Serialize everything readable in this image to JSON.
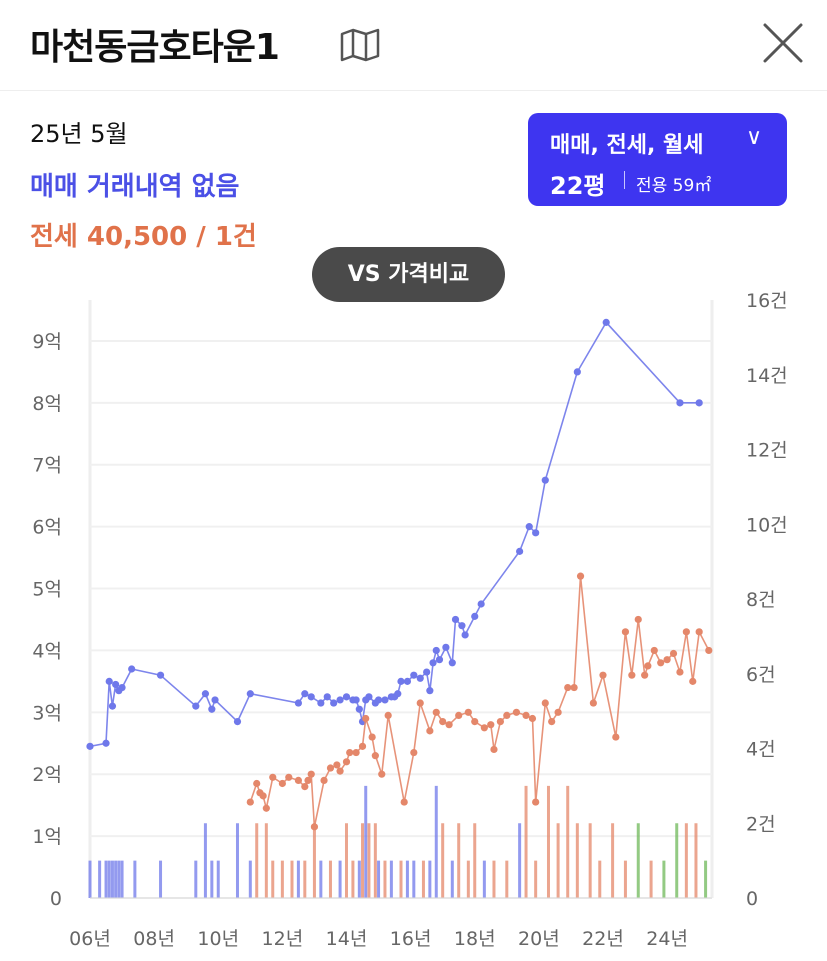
{
  "header": {
    "title": "마천동금호타운1",
    "map_icon": "map-icon",
    "close_icon": "close-icon"
  },
  "summary": {
    "date": "25년 5월",
    "sale_text": "매매 거래내역 없음",
    "lease_text": "전세 40,500 / 1건"
  },
  "type_selector": {
    "types_label": "매매, 전세, 월세",
    "chevron": "∨",
    "pyeong": "22평",
    "area": "전용 59㎡"
  },
  "vs_button": {
    "label": "VS 가격비교"
  },
  "colors": {
    "sale": "#6f78ea",
    "lease": "#e4876a",
    "accent": "#3e35f0"
  },
  "chart_data": {
    "type": "line",
    "x_tick_labels": [
      "06년",
      "08년",
      "10년",
      "12년",
      "14년",
      "16년",
      "18년",
      "20년",
      "22년",
      "24년"
    ],
    "y_left_ticks": [
      "0",
      "1억",
      "2억",
      "3억",
      "4억",
      "5억",
      "6억",
      "7억",
      "8억",
      "9억"
    ],
    "y_right_ticks": [
      "0",
      "2건",
      "4건",
      "6건",
      "8건",
      "10건",
      "12건",
      "14건",
      "16건"
    ],
    "xlim": [
      2006.0,
      2025.4
    ],
    "ylim_left": [
      0,
      9.5
    ],
    "ylim_right": [
      0,
      16
    ],
    "series": [
      {
        "name": "매매",
        "color": "#6f78ea",
        "x": [
          2006.0,
          2006.5,
          2006.6,
          2006.7,
          2006.8,
          2006.9,
          2007.0,
          2007.3,
          2008.2,
          2009.3,
          2009.6,
          2009.8,
          2009.9,
          2010.6,
          2011.0,
          2012.5,
          2012.7,
          2012.9,
          2013.2,
          2013.4,
          2013.6,
          2013.8,
          2014.0,
          2014.2,
          2014.3,
          2014.4,
          2014.5,
          2014.6,
          2014.7,
          2014.9,
          2015.0,
          2015.2,
          2015.4,
          2015.5,
          2015.6,
          2015.7,
          2015.9,
          2016.1,
          2016.3,
          2016.5,
          2016.6,
          2016.7,
          2016.8,
          2016.9,
          2017.1,
          2017.3,
          2017.4,
          2017.6,
          2017.7,
          2018.0,
          2018.2,
          2019.4,
          2019.7,
          2019.9,
          2020.2,
          2021.2,
          2022.1,
          2024.4,
          2025.0
        ],
        "y": [
          2.45,
          2.5,
          3.5,
          3.1,
          3.45,
          3.35,
          3.4,
          3.7,
          3.6,
          3.1,
          3.3,
          3.05,
          3.2,
          2.85,
          3.3,
          3.15,
          3.3,
          3.25,
          3.15,
          3.25,
          3.15,
          3.2,
          3.25,
          3.2,
          3.2,
          3.05,
          2.85,
          3.2,
          3.25,
          3.15,
          3.2,
          3.2,
          3.25,
          3.25,
          3.3,
          3.5,
          3.5,
          3.6,
          3.55,
          3.65,
          3.35,
          3.8,
          4.0,
          3.85,
          4.05,
          3.8,
          4.5,
          4.4,
          4.25,
          4.55,
          4.75,
          5.6,
          6.0,
          5.9,
          6.75,
          8.5,
          9.3,
          8.0,
          8.0
        ]
      },
      {
        "name": "전세",
        "color": "#e4876a",
        "x": [
          2011.0,
          2011.2,
          2011.3,
          2011.4,
          2011.5,
          2011.7,
          2012.0,
          2012.2,
          2012.5,
          2012.7,
          2012.8,
          2012.9,
          2013.0,
          2013.3,
          2013.5,
          2013.7,
          2013.8,
          2014.0,
          2014.1,
          2014.3,
          2014.5,
          2014.6,
          2014.8,
          2014.9,
          2015.1,
          2015.3,
          2015.8,
          2016.1,
          2016.3,
          2016.6,
          2016.8,
          2017.0,
          2017.2,
          2017.5,
          2017.8,
          2018.0,
          2018.3,
          2018.5,
          2018.6,
          2018.8,
          2019.0,
          2019.3,
          2019.6,
          2019.8,
          2019.9,
          2020.2,
          2020.4,
          2020.6,
          2020.9,
          2021.1,
          2021.3,
          2021.7,
          2022.0,
          2022.4,
          2022.7,
          2022.9,
          2023.1,
          2023.3,
          2023.4,
          2023.6,
          2023.8,
          2024.0,
          2024.2,
          2024.4,
          2024.6,
          2024.8,
          2025.0,
          2025.3
        ],
        "y": [
          1.55,
          1.85,
          1.7,
          1.65,
          1.45,
          1.95,
          1.85,
          1.95,
          1.9,
          1.8,
          1.9,
          2.0,
          1.15,
          1.9,
          2.1,
          2.15,
          2.05,
          2.2,
          2.35,
          2.35,
          2.45,
          2.9,
          2.6,
          2.3,
          2.0,
          2.95,
          1.55,
          2.35,
          3.15,
          2.7,
          3.0,
          2.85,
          2.8,
          2.95,
          3.0,
          2.85,
          2.75,
          2.8,
          2.4,
          2.85,
          2.95,
          3.0,
          2.95,
          2.9,
          1.55,
          3.15,
          2.85,
          3.0,
          3.4,
          3.4,
          5.2,
          3.15,
          3.6,
          2.6,
          4.3,
          3.6,
          4.5,
          3.6,
          3.75,
          4.0,
          3.8,
          3.85,
          3.95,
          3.65,
          4.3,
          3.5,
          4.3,
          4.0
        ]
      }
    ],
    "volume_bars": [
      {
        "x": 2006.0,
        "count": 1,
        "color": "#6f78ea"
      },
      {
        "x": 2006.3,
        "count": 1,
        "color": "#6f78ea"
      },
      {
        "x": 2006.5,
        "count": 1,
        "color": "#6f78ea"
      },
      {
        "x": 2006.6,
        "count": 1,
        "color": "#6f78ea"
      },
      {
        "x": 2006.7,
        "count": 1,
        "color": "#6f78ea"
      },
      {
        "x": 2006.8,
        "count": 1,
        "color": "#6f78ea"
      },
      {
        "x": 2006.9,
        "count": 1,
        "color": "#6f78ea"
      },
      {
        "x": 2007.0,
        "count": 1,
        "color": "#6f78ea"
      },
      {
        "x": 2007.4,
        "count": 1,
        "color": "#6f78ea"
      },
      {
        "x": 2008.2,
        "count": 1,
        "color": "#6f78ea"
      },
      {
        "x": 2009.3,
        "count": 1,
        "color": "#6f78ea"
      },
      {
        "x": 2009.6,
        "count": 2,
        "color": "#6f78ea"
      },
      {
        "x": 2009.8,
        "count": 1,
        "color": "#6f78ea"
      },
      {
        "x": 2010.0,
        "count": 1,
        "color": "#6f78ea"
      },
      {
        "x": 2010.6,
        "count": 2,
        "color": "#6f78ea"
      },
      {
        "x": 2011.0,
        "count": 1,
        "color": "#6f78ea"
      },
      {
        "x": 2011.2,
        "count": 2,
        "color": "#e4876a"
      },
      {
        "x": 2011.5,
        "count": 2,
        "color": "#e4876a"
      },
      {
        "x": 2011.7,
        "count": 1,
        "color": "#e4876a"
      },
      {
        "x": 2012.0,
        "count": 1,
        "color": "#e4876a"
      },
      {
        "x": 2012.3,
        "count": 1,
        "color": "#e4876a"
      },
      {
        "x": 2012.5,
        "count": 1,
        "color": "#6f78ea"
      },
      {
        "x": 2012.7,
        "count": 1,
        "color": "#e4876a"
      },
      {
        "x": 2013.0,
        "count": 2,
        "color": "#e4876a"
      },
      {
        "x": 2013.2,
        "count": 1,
        "color": "#6f78ea"
      },
      {
        "x": 2013.5,
        "count": 1,
        "color": "#e4876a"
      },
      {
        "x": 2013.8,
        "count": 1,
        "color": "#6f78ea"
      },
      {
        "x": 2014.0,
        "count": 2,
        "color": "#e4876a"
      },
      {
        "x": 2014.2,
        "count": 1,
        "color": "#e4876a"
      },
      {
        "x": 2014.4,
        "count": 1,
        "color": "#6f78ea"
      },
      {
        "x": 2014.5,
        "count": 2,
        "color": "#e4876a"
      },
      {
        "x": 2014.6,
        "count": 3,
        "color": "#6f78ea"
      },
      {
        "x": 2014.7,
        "count": 2,
        "color": "#e4876a"
      },
      {
        "x": 2014.9,
        "count": 2,
        "color": "#e4876a"
      },
      {
        "x": 2015.0,
        "count": 1,
        "color": "#6f78ea"
      },
      {
        "x": 2015.2,
        "count": 1,
        "color": "#e4876a"
      },
      {
        "x": 2015.4,
        "count": 1,
        "color": "#6f78ea"
      },
      {
        "x": 2015.7,
        "count": 1,
        "color": "#e4876a"
      },
      {
        "x": 2015.9,
        "count": 1,
        "color": "#6f78ea"
      },
      {
        "x": 2016.1,
        "count": 1,
        "color": "#6f78ea"
      },
      {
        "x": 2016.4,
        "count": 1,
        "color": "#e4876a"
      },
      {
        "x": 2016.6,
        "count": 1,
        "color": "#6f78ea"
      },
      {
        "x": 2016.8,
        "count": 3,
        "color": "#6f78ea"
      },
      {
        "x": 2017.0,
        "count": 2,
        "color": "#e4876a"
      },
      {
        "x": 2017.3,
        "count": 1,
        "color": "#6f78ea"
      },
      {
        "x": 2017.5,
        "count": 2,
        "color": "#e4876a"
      },
      {
        "x": 2017.8,
        "count": 1,
        "color": "#e4876a"
      },
      {
        "x": 2018.0,
        "count": 2,
        "color": "#e4876a"
      },
      {
        "x": 2018.3,
        "count": 1,
        "color": "#6f78ea"
      },
      {
        "x": 2018.6,
        "count": 1,
        "color": "#e4876a"
      },
      {
        "x": 2019.0,
        "count": 1,
        "color": "#e4876a"
      },
      {
        "x": 2019.4,
        "count": 2,
        "color": "#6f78ea"
      },
      {
        "x": 2019.6,
        "count": 3,
        "color": "#e4876a"
      },
      {
        "x": 2019.9,
        "count": 1,
        "color": "#e4876a"
      },
      {
        "x": 2020.3,
        "count": 3,
        "color": "#e4876a"
      },
      {
        "x": 2020.6,
        "count": 2,
        "color": "#e4876a"
      },
      {
        "x": 2020.9,
        "count": 3,
        "color": "#e4876a"
      },
      {
        "x": 2021.2,
        "count": 2,
        "color": "#e4876a"
      },
      {
        "x": 2021.6,
        "count": 2,
        "color": "#e4876a"
      },
      {
        "x": 2021.9,
        "count": 1,
        "color": "#e4876a"
      },
      {
        "x": 2022.3,
        "count": 2,
        "color": "#e4876a"
      },
      {
        "x": 2022.7,
        "count": 1,
        "color": "#e4876a"
      },
      {
        "x": 2023.1,
        "count": 2,
        "color": "#6fb85a"
      },
      {
        "x": 2023.5,
        "count": 1,
        "color": "#e4876a"
      },
      {
        "x": 2023.9,
        "count": 1,
        "color": "#6fb85a"
      },
      {
        "x": 2024.3,
        "count": 2,
        "color": "#6fb85a"
      },
      {
        "x": 2024.6,
        "count": 2,
        "color": "#e4876a"
      },
      {
        "x": 2024.9,
        "count": 2,
        "color": "#e4876a"
      },
      {
        "x": 2025.2,
        "count": 1,
        "color": "#6fb85a"
      }
    ]
  }
}
